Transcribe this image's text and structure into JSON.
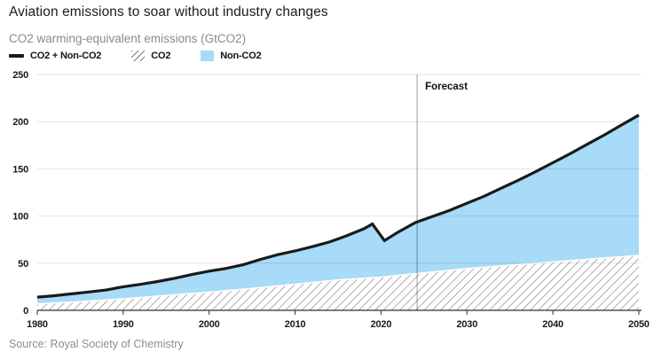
{
  "header": {
    "title": "Aviation emissions to soar without industry changes",
    "subtitle": "CO2 warming-equivalent emissions (GtCO2)"
  },
  "legend": {
    "items": [
      {
        "label": "CO2 + Non-CO2",
        "swatch": "line"
      },
      {
        "label": "CO2",
        "swatch": "hatch"
      },
      {
        "label": "Non-CO2",
        "swatch": "fill"
      }
    ]
  },
  "source": "Source: Royal Society of Chemistry",
  "colors": {
    "total_line": "#1a1a1a",
    "non_co2_fill": "#a7dbf8",
    "hatch_line": "#7a7a7a",
    "grid": "rgba(0,0,0,0.10)",
    "axis": "#2e2e2e",
    "forecast_line": "rgba(0,0,0,0.33)",
    "area_separator": "#ffffff"
  },
  "chart_data": {
    "type": "area",
    "title": "Aviation emissions to soar without industry changes",
    "ylabel": "CO2 warming-equivalent emissions (GtCO2)",
    "xlabel": "",
    "xlim": [
      1980,
      2050
    ],
    "ylim": [
      0,
      250
    ],
    "xticks": [
      1980,
      1990,
      2000,
      2010,
      2020,
      2030,
      2040,
      2050
    ],
    "yticks": [
      0,
      50,
      100,
      150,
      200,
      250
    ],
    "grid": "horizontal",
    "legend_position": "top-left",
    "forecast_divider": {
      "label": "Forecast",
      "x": 2024.2
    },
    "series": [
      {
        "name": "CO2 + Non-CO2",
        "style": "line",
        "points": [
          [
            1980,
            14
          ],
          [
            1982,
            15.5
          ],
          [
            1984,
            17.5
          ],
          [
            1986,
            19.5
          ],
          [
            1988,
            21.5
          ],
          [
            1990,
            25
          ],
          [
            1992,
            27.5
          ],
          [
            1994,
            30.5
          ],
          [
            1996,
            34
          ],
          [
            1998,
            38
          ],
          [
            2000,
            41.5
          ],
          [
            2002,
            44.5
          ],
          [
            2004,
            48.5
          ],
          [
            2006,
            54
          ],
          [
            2008,
            59
          ],
          [
            2010,
            63
          ],
          [
            2012,
            67.5
          ],
          [
            2014,
            72.5
          ],
          [
            2016,
            79
          ],
          [
            2018,
            86.5
          ],
          [
            2019,
            91.5
          ],
          [
            2020.4,
            74
          ],
          [
            2022,
            83
          ],
          [
            2024,
            93
          ],
          [
            2026,
            99.5
          ],
          [
            2028,
            106
          ],
          [
            2030,
            113.5
          ],
          [
            2032,
            121
          ],
          [
            2034,
            129.5
          ],
          [
            2036,
            138
          ],
          [
            2038,
            147
          ],
          [
            2040,
            156.5
          ],
          [
            2042,
            166
          ],
          [
            2044,
            176
          ],
          [
            2046,
            186
          ],
          [
            2048,
            196.5
          ],
          [
            2050,
            207
          ]
        ]
      },
      {
        "name": "CO2",
        "style": "hatched-area",
        "points": [
          [
            1980,
            7.5
          ],
          [
            1985,
            10
          ],
          [
            1990,
            13
          ],
          [
            1995,
            16.5
          ],
          [
            2000,
            20
          ],
          [
            2005,
            24
          ],
          [
            2010,
            28.5
          ],
          [
            2015,
            33
          ],
          [
            2020,
            36
          ],
          [
            2025,
            40.5
          ],
          [
            2030,
            45
          ],
          [
            2035,
            48.5
          ],
          [
            2040,
            52
          ],
          [
            2045,
            55.5
          ],
          [
            2050,
            59
          ]
        ]
      },
      {
        "name": "Non-CO2",
        "style": "area-between",
        "between": [
          "CO2",
          "CO2 + Non-CO2"
        ],
        "fill": "#a7dbf8"
      }
    ]
  }
}
